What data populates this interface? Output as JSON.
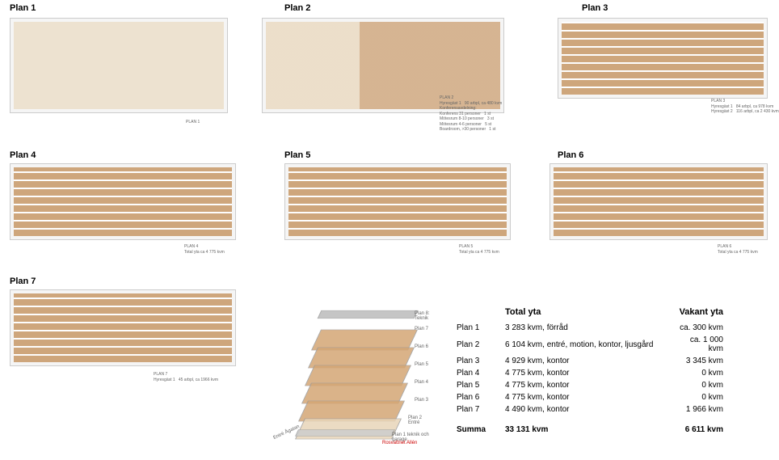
{
  "labels": {
    "p1": "Plan 1",
    "p2": "Plan 2",
    "p3": "Plan 3",
    "p4": "Plan 4",
    "p5": "Plan 5",
    "p6": "Plan 6",
    "p7": "Plan 7"
  },
  "captions": {
    "c1": "PLAN 1",
    "c2": "PLAN 2\nHyresgäst 1   90 arbpl, ca 480 kvm\nKonferensavdelning:\nKonferens 31 personer   1 st\nMötesrum 8-10 personer   3 st\nMötesrum 4-6 personer   5 st\nBoardroom, >30 personer   1 st",
    "c3": "PLAN 3\nHyresgäst 1   84 arbpl, ca 978 kvm\nHyresgäst 2   116 arbpl, ca 2 430 kvm",
    "c4": "PLAN 4\nTotal yta ca 4 775 kvm",
    "c5": "PLAN 5\nTotal yta ca 4 775 kvm",
    "c6": "PLAN 6\nTotal yta ca 4 775 kvm",
    "c7": "PLAN 7\nHyresgäst 1   45 arbpl, ca 1966 kvm"
  },
  "iso": {
    "f8": "Plan 8: Teknik",
    "f7": "Plan 7",
    "f6": "Plan 6",
    "f5": "Plan 5",
    "f4": "Plan 4",
    "f3": "Plan 3",
    "f2": "Plan 2 Entré",
    "f1": "Plan 1 teknik och garage",
    "left": "Entré Ågatan",
    "right": "Rosvattnet Allén"
  },
  "table": {
    "h1": "",
    "h2": "Total yta",
    "h3": "Vakant yta",
    "rows": [
      {
        "a": "Plan 1",
        "b": "3 283 kvm, förråd",
        "c": "ca. 300 kvm"
      },
      {
        "a": "Plan 2",
        "b": "6 104 kvm, entré, motion, kontor, ljusgård",
        "c": "ca. 1 000 kvm"
      },
      {
        "a": "Plan 3",
        "b": "4 929 kvm, kontor",
        "c": "3 345 kvm"
      },
      {
        "a": "Plan 4",
        "b": "4 775 kvm, kontor",
        "c": "0 kvm"
      },
      {
        "a": "Plan 5",
        "b": "4 775 kvm, kontor",
        "c": "0 kvm"
      },
      {
        "a": "Plan 6",
        "b": "4 775 kvm, kontor",
        "c": "0 kvm"
      },
      {
        "a": "Plan 7",
        "b": "4 490 kvm, kontor",
        "c": "1 966 kvm"
      }
    ],
    "sum": {
      "a": "Summa",
      "b": "33 131 kvm",
      "c": "6 611 kvm"
    }
  },
  "colors": {
    "plan": "#c89968",
    "light": "#e8d5b8",
    "bg": "#ffffff"
  }
}
